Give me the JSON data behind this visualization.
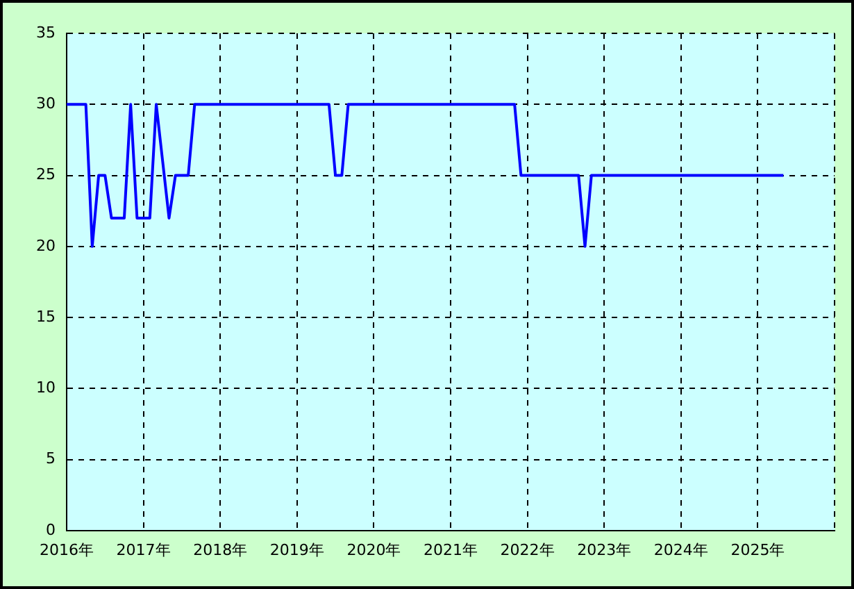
{
  "chart_data": {
    "type": "line",
    "x": [
      "2016-01",
      "2016-04",
      "2016-05",
      "2016-06",
      "2016-07",
      "2016-08",
      "2016-10",
      "2016-11",
      "2016-12",
      "2017-02",
      "2017-03",
      "2017-04",
      "2017-05",
      "2017-06",
      "2017-08",
      "2017-09",
      "2019-06",
      "2019-07",
      "2019-08",
      "2019-09",
      "2021-11",
      "2021-12",
      "2022-09",
      "2022-10",
      "2022-11",
      "2025-05"
    ],
    "series": [
      {
        "color": "#0000ff",
        "values": [
          30,
          30,
          20,
          25,
          25,
          22,
          22,
          30,
          22,
          22,
          30,
          26,
          22,
          25,
          25,
          30,
          30,
          25,
          25,
          30,
          30,
          25,
          25,
          20,
          25,
          25
        ]
      }
    ],
    "xlim": [
      "2016-01",
      "2026-01"
    ],
    "xticks": [
      {
        "value": "2016-01",
        "label": "2016年"
      },
      {
        "value": "2017-01",
        "label": "2017年"
      },
      {
        "value": "2018-01",
        "label": "2018年"
      },
      {
        "value": "2019-01",
        "label": "2019年"
      },
      {
        "value": "2020-01",
        "label": "2020年"
      },
      {
        "value": "2021-01",
        "label": "2021年"
      },
      {
        "value": "2022-01",
        "label": "2022年"
      },
      {
        "value": "2023-01",
        "label": "2023年"
      },
      {
        "value": "2024-01",
        "label": "2024年"
      },
      {
        "value": "2025-01",
        "label": "2025年"
      },
      {
        "value": "2026-01",
        "label": null
      }
    ],
    "ylim": [
      0,
      35
    ],
    "yticks": [
      0,
      5,
      10,
      15,
      20,
      25,
      30,
      35
    ],
    "grid": true,
    "legend": false,
    "marker": "none",
    "line_style": "solid"
  }
}
